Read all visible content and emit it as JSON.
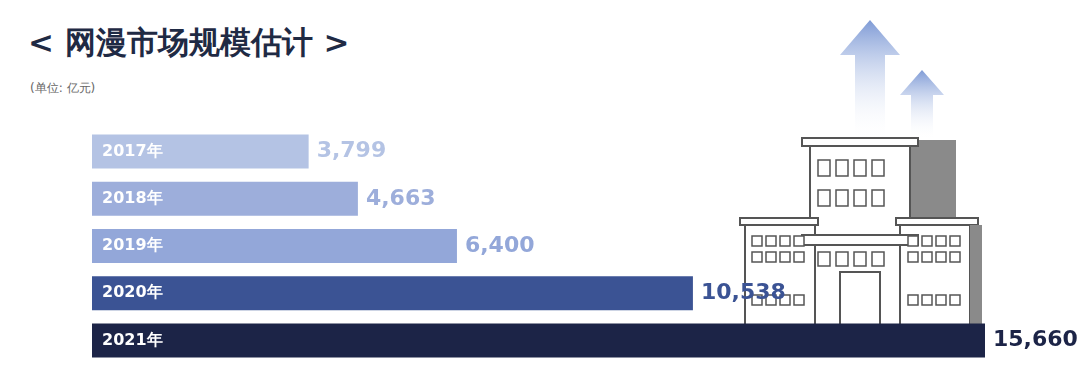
{
  "chart_data": {
    "type": "bar",
    "orientation": "horizontal",
    "title": "< 网漫市场规模估计 >",
    "subtitle": "(单位: 亿元)",
    "categories": [
      "2017年",
      "2018年",
      "2019年",
      "2020年",
      "2021年"
    ],
    "values": [
      3799,
      4663,
      6400,
      10538,
      15660
    ],
    "value_labels": [
      "3,799",
      "4,663",
      "6,400",
      "10,538",
      "15,660"
    ],
    "colors": [
      "#b4c3e4",
      "#9daedb",
      "#93a7d9",
      "#3b5394",
      "#1c2447"
    ],
    "xlim": [
      0,
      15660
    ],
    "grid": false,
    "tick_labels": false,
    "data_labels": true
  }
}
